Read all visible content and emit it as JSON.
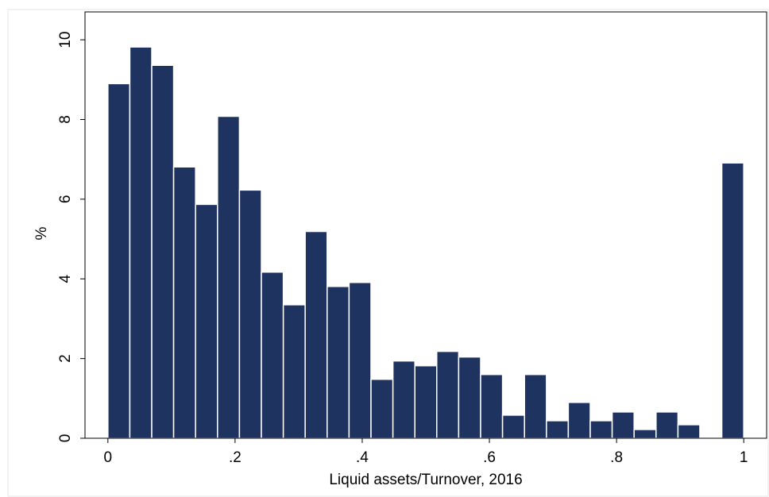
{
  "chart_data": {
    "type": "histogram",
    "xlabel": "Liquid assets/Turnover, 2016",
    "ylabel": "%",
    "bins": [
      0,
      0.0345,
      0.069,
      0.1034,
      0.1379,
      0.1724,
      0.2069,
      0.2414,
      0.2759,
      0.3103,
      0.3448,
      0.3793,
      0.4138,
      0.4483,
      0.4828,
      0.5172,
      0.5517,
      0.5862,
      0.6207,
      0.6552,
      0.6897,
      0.7241,
      0.7586,
      0.7931,
      0.8276,
      0.8621,
      0.8966,
      0.931,
      0.9655,
      1
    ],
    "values": [
      8.9,
      9.82,
      9.36,
      6.81,
      5.87,
      8.08,
      6.23,
      4.17,
      3.35,
      5.19,
      3.81,
      3.91,
      1.48,
      1.94,
      1.82,
      2.18,
      2.04,
      1.6,
      0.58,
      1.6,
      0.44,
      0.9,
      0.44,
      0.66,
      0.22,
      0.66,
      0.34,
      0,
      6.91
    ],
    "color": "#1f3360",
    "xlim": [
      -0.036,
      1.036
    ],
    "ylim": [
      0,
      10.7
    ],
    "xticks": [
      0,
      {
        "value": 0.2,
        "label": ".2"
      },
      {
        "value": 0.4,
        "label": ".4"
      },
      {
        "value": 0.6,
        "label": ".6"
      },
      {
        "value": 0.8,
        "label": ".8"
      },
      1
    ],
    "yticks": [
      0,
      2,
      4,
      6,
      8,
      10
    ]
  }
}
